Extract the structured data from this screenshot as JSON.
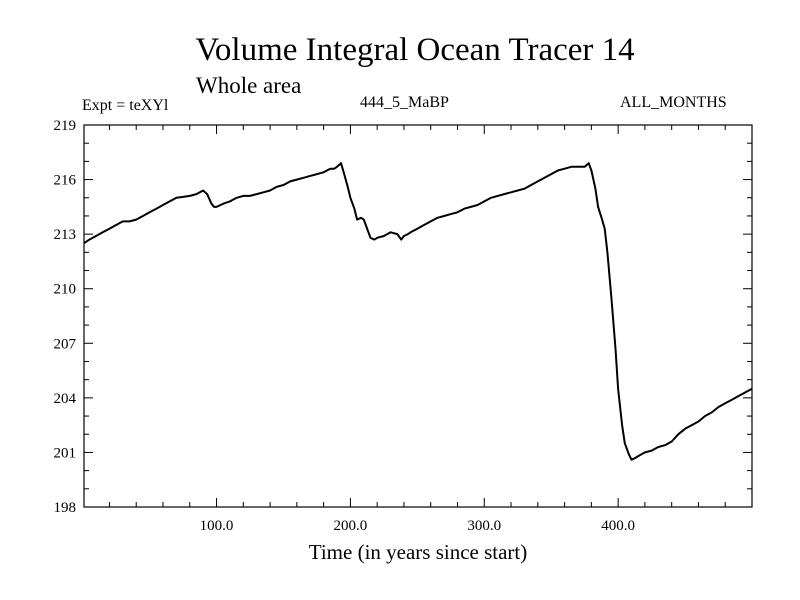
{
  "title": "Volume Integral Ocean Tracer 14",
  "subtitle": "Whole area",
  "expt_label": "Expt = teXYl",
  "run_label": "444_5_MaBP",
  "months_label": "ALL_MONTHS",
  "chart_data": {
    "type": "line",
    "title": "Volume Integral Ocean Tracer 14",
    "subtitle": "Whole area",
    "xlabel": "Time (in years since start)",
    "ylabel": "",
    "xlim": [
      1,
      500
    ],
    "ylim": [
      198,
      219
    ],
    "x_ticks": [
      100,
      200,
      300,
      400
    ],
    "x_tick_labels": [
      "100.0",
      "200.0",
      "300.0",
      "400.0"
    ],
    "y_ticks": [
      198,
      201,
      204,
      207,
      210,
      213,
      216,
      219
    ],
    "y_tick_labels": [
      "198",
      "201",
      "204",
      "207",
      "210",
      "213",
      "216",
      "219"
    ],
    "grid": false,
    "series": [
      {
        "color": "#000000",
        "x": [
          1,
          5,
          10,
          15,
          20,
          25,
          30,
          35,
          40,
          45,
          50,
          55,
          60,
          65,
          70,
          75,
          80,
          85,
          90,
          93,
          96,
          98,
          100,
          103,
          106,
          110,
          115,
          120,
          125,
          130,
          135,
          140,
          145,
          150,
          155,
          160,
          165,
          170,
          175,
          180,
          185,
          188,
          190,
          193,
          195,
          198,
          200,
          203,
          205,
          208,
          210,
          213,
          215,
          218,
          220,
          225,
          230,
          235,
          238,
          240,
          243,
          245,
          250,
          255,
          260,
          265,
          270,
          275,
          280,
          285,
          290,
          295,
          300,
          305,
          310,
          315,
          320,
          325,
          330,
          335,
          340,
          345,
          350,
          355,
          360,
          365,
          370,
          375,
          378,
          380,
          383,
          385,
          388,
          390,
          392,
          395,
          398,
          400,
          403,
          405,
          408,
          410,
          413,
          415,
          420,
          425,
          430,
          435,
          440,
          445,
          450,
          455,
          460,
          465,
          470,
          475,
          480,
          485,
          490,
          495,
          500
        ],
        "y": [
          212.5,
          212.7,
          212.9,
          213.1,
          213.3,
          213.5,
          213.7,
          213.7,
          213.8,
          214.0,
          214.2,
          214.4,
          214.6,
          214.8,
          215.0,
          215.05,
          215.1,
          215.2,
          215.4,
          215.2,
          214.7,
          214.5,
          214.5,
          214.6,
          214.7,
          214.8,
          215.0,
          215.1,
          215.1,
          215.2,
          215.3,
          215.4,
          215.6,
          215.7,
          215.9,
          216.0,
          216.1,
          216.2,
          216.3,
          216.4,
          216.6,
          216.6,
          216.7,
          216.9,
          216.4,
          215.6,
          215.0,
          214.4,
          213.8,
          213.9,
          213.8,
          213.2,
          212.8,
          212.7,
          212.8,
          212.9,
          213.1,
          213.0,
          212.7,
          212.9,
          213.0,
          213.1,
          213.3,
          213.5,
          213.7,
          213.9,
          214.0,
          214.1,
          214.2,
          214.4,
          214.5,
          214.6,
          214.8,
          215.0,
          215.1,
          215.2,
          215.3,
          215.4,
          215.5,
          215.7,
          215.9,
          216.1,
          216.3,
          216.5,
          216.6,
          216.7,
          216.7,
          216.7,
          216.9,
          216.5,
          215.5,
          214.5,
          213.8,
          213.3,
          212.0,
          209.5,
          206.7,
          204.5,
          202.5,
          201.5,
          200.9,
          200.6,
          200.7,
          200.8,
          201.0,
          201.1,
          201.3,
          201.4,
          201.6,
          202.0,
          202.3,
          202.5,
          202.7,
          203.0,
          203.2,
          203.5,
          203.7,
          203.9,
          204.1,
          204.3,
          204.5
        ]
      }
    ]
  }
}
